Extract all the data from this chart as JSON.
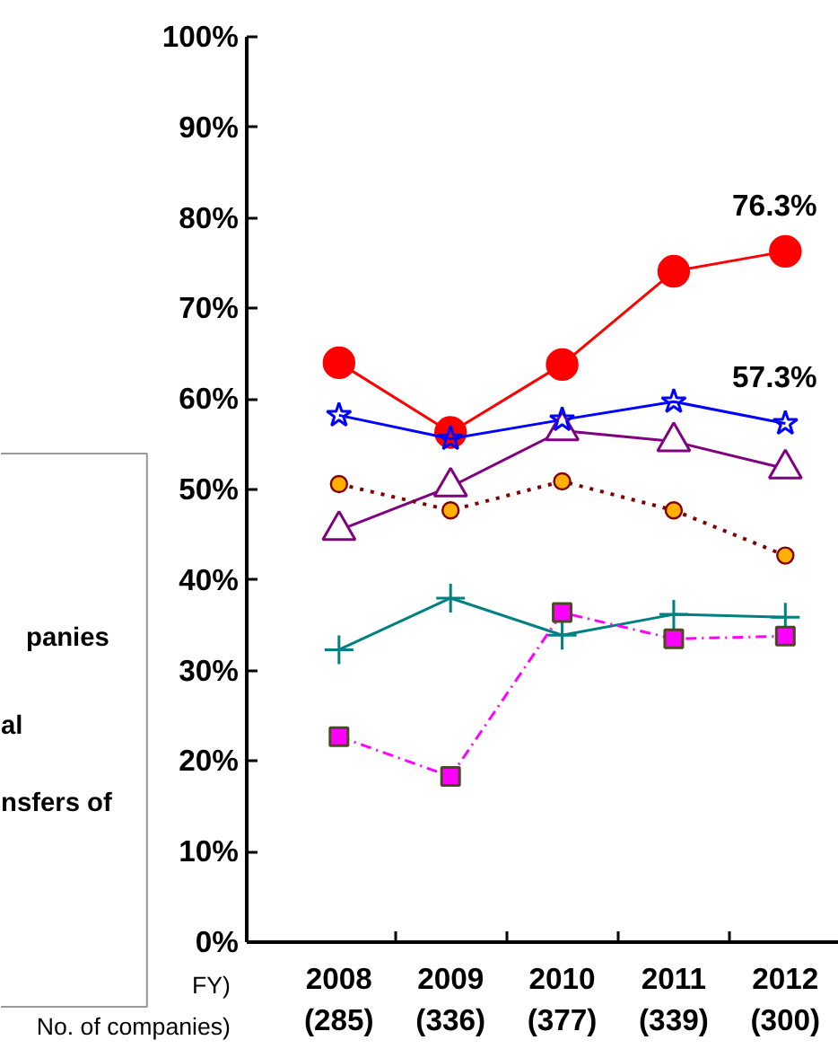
{
  "chart_data": {
    "type": "line",
    "categories": [
      "2008\n(285)",
      "2009\n(336)",
      "2010\n(377)",
      "2011\n(339)",
      "2012\n(300)"
    ],
    "ylim": [
      0,
      100
    ],
    "yticks": [
      {
        "value": 0,
        "label": "0%"
      },
      {
        "value": 10,
        "label": "10%"
      },
      {
        "value": 20,
        "label": "20%"
      },
      {
        "value": 30,
        "label": "30%"
      },
      {
        "value": 40,
        "label": "40%"
      },
      {
        "value": 50,
        "label": "50%"
      },
      {
        "value": 60,
        "label": "60%"
      },
      {
        "value": 70,
        "label": "70%"
      },
      {
        "value": 80,
        "label": "80%"
      },
      {
        "value": 90,
        "label": "90%"
      },
      {
        "value": 100,
        "label": "100%"
      }
    ],
    "grid": false,
    "series": [
      {
        "color": "#ff0000",
        "marker": "circle",
        "line_style": "solid",
        "values": [
          64.0,
          56.3,
          63.8,
          74.1,
          76.3
        ],
        "value_labels": [
          null,
          null,
          null,
          null,
          "76.3%"
        ]
      },
      {
        "color": "#0000ff",
        "marker": "star",
        "line_style": "solid",
        "values": [
          58.2,
          55.6,
          57.7,
          59.7,
          57.3
        ],
        "value_labels": [
          null,
          null,
          null,
          null,
          "57.3%"
        ]
      },
      {
        "color": "#800080",
        "marker": "triangle",
        "line_style": "solid",
        "values": [
          45.5,
          50.3,
          56.5,
          55.3,
          52.3
        ]
      },
      {
        "color": "#ffb000",
        "marker": "circle",
        "line_style": "dotted",
        "values": [
          50.6,
          47.7,
          50.9,
          47.7,
          42.7
        ]
      },
      {
        "color": "#008080",
        "marker": "cross",
        "line_style": "solid",
        "values": [
          32.3,
          38.0,
          33.9,
          36.2,
          35.9
        ]
      },
      {
        "color": "#ff00ff",
        "marker": "square",
        "line_style": "dashed",
        "values": [
          22.7,
          18.3,
          36.4,
          33.5,
          33.8
        ]
      }
    ],
    "annotations": [
      "panies",
      "al",
      "nsfers of",
      "FY)",
      "No. of companies)"
    ]
  }
}
